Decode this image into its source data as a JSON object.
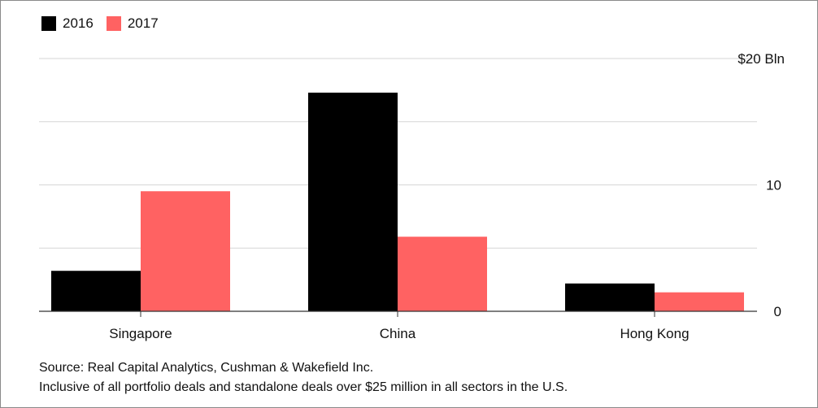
{
  "chart_data": {
    "type": "bar",
    "categories": [
      "Singapore",
      "China",
      "Hong Kong"
    ],
    "series": [
      {
        "name": "2016",
        "color": "#000000",
        "values": [
          3.2,
          17.3,
          2.2
        ]
      },
      {
        "name": "2017",
        "color": "#ff6262",
        "values": [
          9.5,
          5.9,
          1.5
        ]
      }
    ],
    "ylim": [
      0,
      20
    ],
    "yticks": [
      {
        "value": 0,
        "label": "0"
      },
      {
        "value": 10,
        "label": "10"
      },
      {
        "value": 20,
        "label": "$20 Bln"
      }
    ],
    "gridlines": [
      5,
      10,
      15,
      20
    ],
    "legend_position": "top-left",
    "axis_side": "right"
  },
  "notes": {
    "source": "Source: Real Capital Analytics, Cushman & Wakefield Inc.",
    "footnote": "Inclusive of all portfolio deals and standalone deals over $25 million in all sectors in the U.S."
  }
}
